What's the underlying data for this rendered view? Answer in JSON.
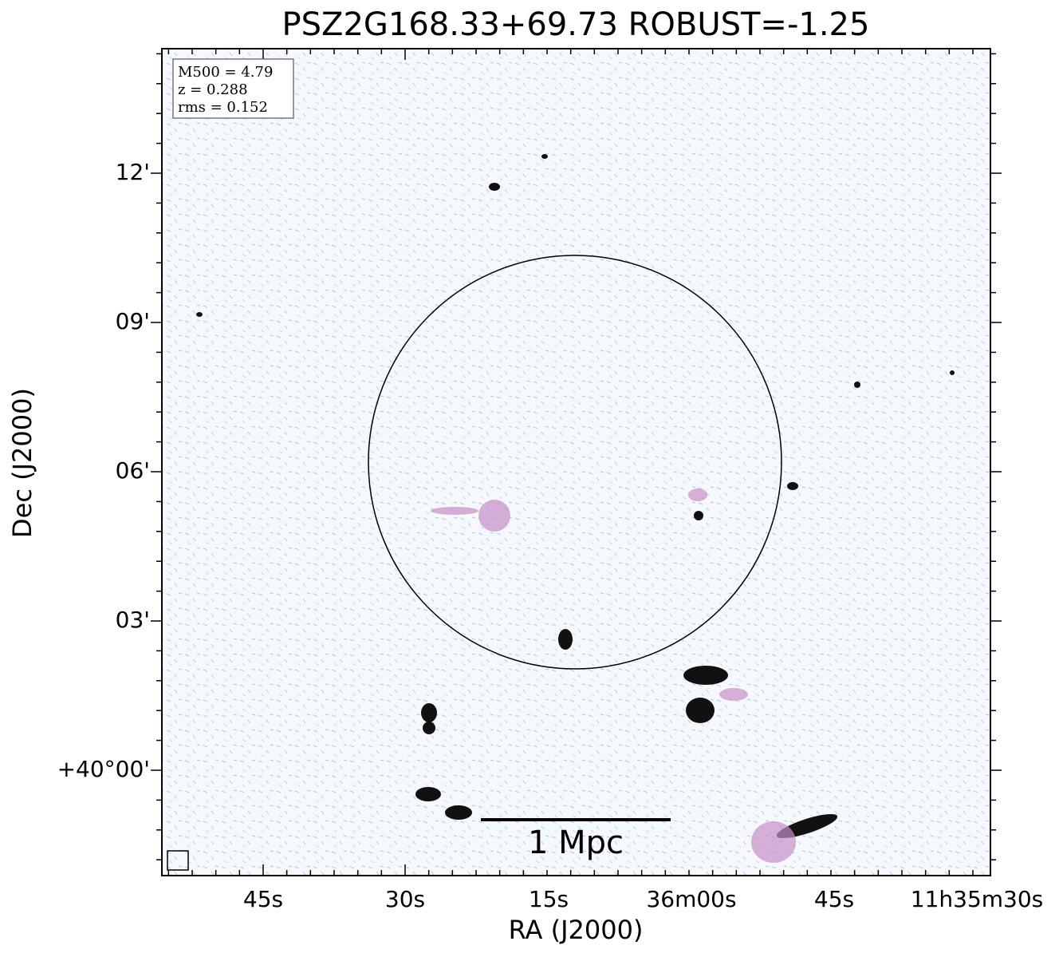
{
  "title": "PSZ2G168.33+69.73 ROBUST=-1.25",
  "x_axis": {
    "label": "RA (J2000)",
    "tick_labels": [
      "45s",
      "30s",
      "15s",
      "36m00s",
      "45s",
      "11h35m30s"
    ]
  },
  "y_axis": {
    "label": "Dec (J2000)",
    "tick_labels": [
      "12'",
      "09'",
      "06'",
      "03'",
      "+40°00'"
    ]
  },
  "info_box": {
    "lines": [
      "M500 = 4.79",
      "z = 0.288",
      "rms = 0.152"
    ]
  },
  "scale_bar": {
    "label": "1 Mpc"
  }
}
